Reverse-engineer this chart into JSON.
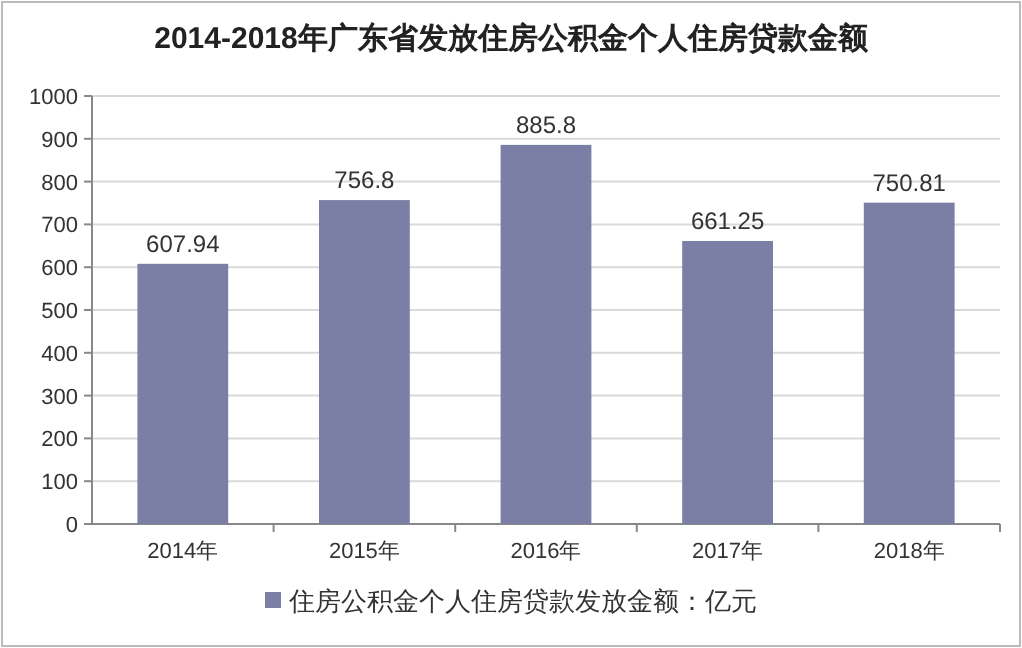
{
  "chart_data": {
    "type": "bar",
    "title": "2014-2018年广东省发放住房公积金个人住房贷款金额",
    "categories": [
      "2014年",
      "2015年",
      "2016年",
      "2017年",
      "2018年"
    ],
    "series": [
      {
        "name": "住房公积金个人住房贷款发放金额：亿元",
        "color": "#7b7fa6",
        "values": [
          607.94,
          756.8,
          885.8,
          661.25,
          750.81
        ]
      }
    ],
    "ylim": [
      0,
      1000
    ],
    "yticks": [
      0,
      100,
      200,
      300,
      400,
      500,
      600,
      700,
      800,
      900,
      1000
    ],
    "grid": "y",
    "legend": "bottom",
    "data_labels": true
  }
}
